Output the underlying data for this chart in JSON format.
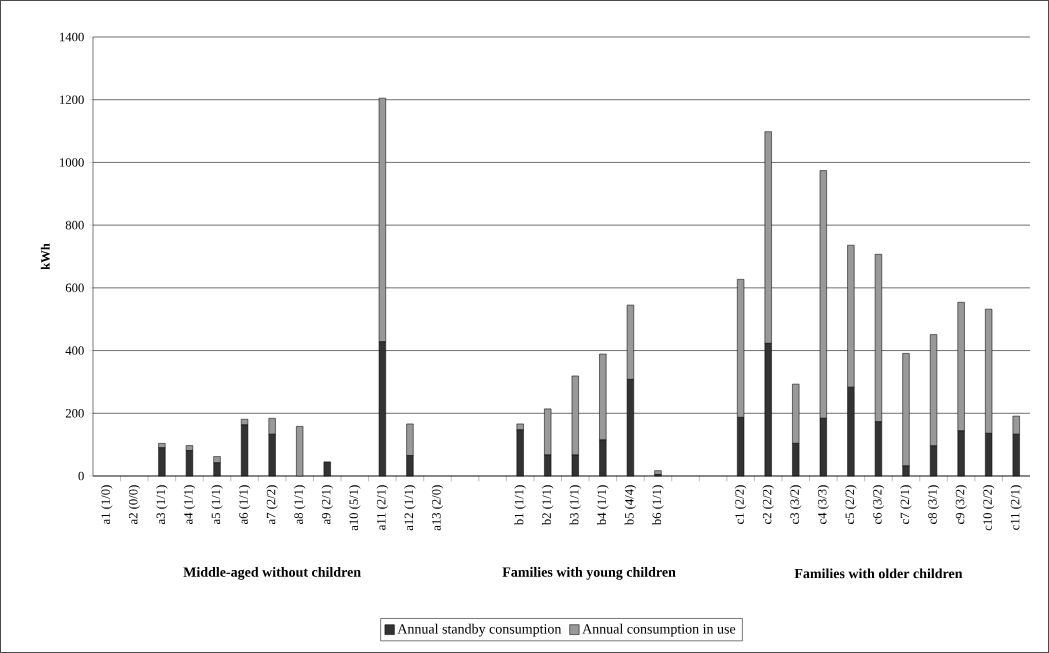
{
  "chart_data": {
    "type": "bar",
    "stacked": true,
    "ylabel": "kWh",
    "categories": [
      "a1 (1/0)",
      "a2 (0/0)",
      "a3 (1/1)",
      "a4 (1/1)",
      "a5 (1/1)",
      "a6 (1/1)",
      "a7 (2/2)",
      "a8 (1/1)",
      "a9 (2/1)",
      "a10 (5/1)",
      "a11 (2/1)",
      "a12 (1/1)",
      "a13 (2/0)",
      null,
      null,
      "b1 (1/1)",
      "b2 (1/1)",
      "b3 (1/1)",
      "b4 (1/1)",
      "b5 (4/4)",
      "b6 (1/1)",
      null,
      null,
      "c1 (2/2)",
      "c2 (2/2)",
      "c3 (3/2)",
      "c4 (3/3)",
      "c5 (2/2)",
      "c6 (3/2)",
      "c7 (2/1)",
      "c8 (3/1)",
      "c9 (3/2)",
      "c10 (2/2)",
      "c11 (2/1)"
    ],
    "series": [
      {
        "name": "Annual standby consumption",
        "color": "#333333",
        "values": [
          0,
          0,
          90,
          81,
          42,
          163,
          133,
          0,
          45,
          0,
          428,
          65,
          0,
          0,
          0,
          147,
          67,
          67,
          115,
          308,
          5,
          0,
          0,
          187,
          423,
          104,
          184,
          283,
          173,
          32,
          96,
          144,
          136,
          133
        ]
      },
      {
        "name": "Annual consumption in use",
        "color": "#999999",
        "values": [
          0,
          0,
          14,
          16,
          20,
          18,
          51,
          158,
          0,
          0,
          777,
          101,
          0,
          0,
          0,
          19,
          147,
          252,
          274,
          237,
          12,
          0,
          0,
          440,
          675,
          189,
          790,
          453,
          534,
          359,
          355,
          410,
          396,
          58
        ]
      }
    ],
    "ylim": [
      0,
      1400
    ],
    "yticks": [
      0,
      200,
      400,
      600,
      800,
      1000,
      1200,
      1400
    ],
    "grid": "y",
    "legend": "bottom",
    "annotations": [
      "Middle-aged without children",
      "Families with young children",
      "Families with older children"
    ]
  }
}
